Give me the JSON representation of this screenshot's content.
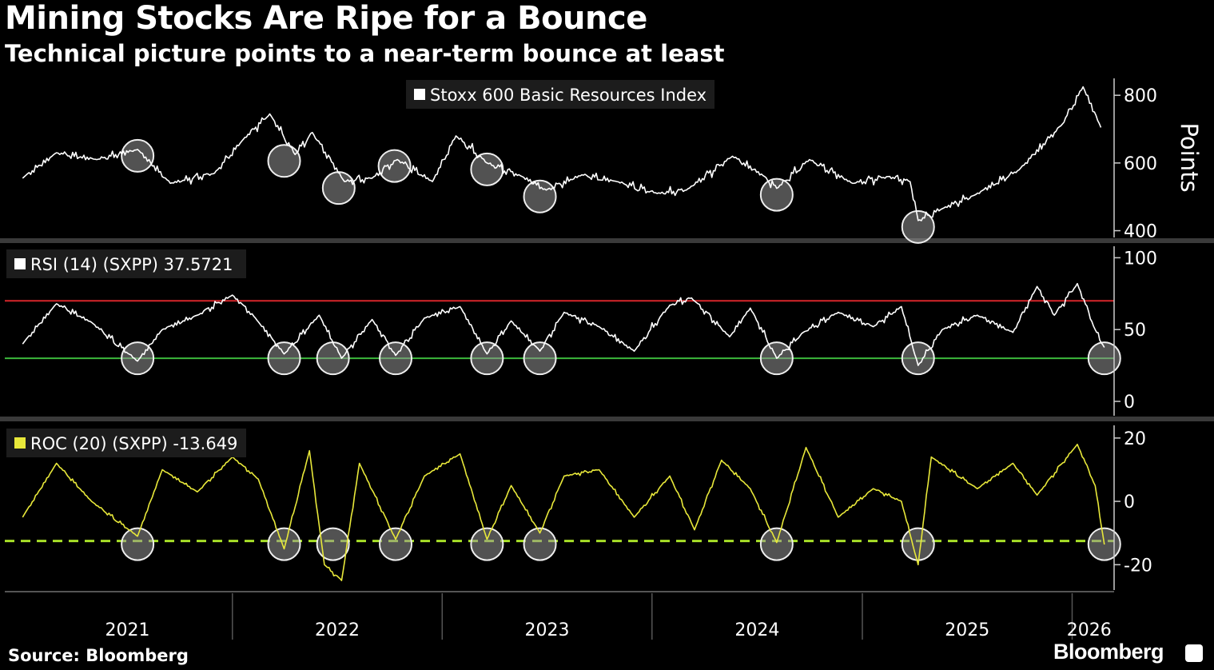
{
  "title": "Mining Stocks Are Ripe for a Bounce",
  "subtitle": "Technical picture points to a near-term bounce at least",
  "source": "Source: Bloomberg",
  "brand": "Bloomberg",
  "colors": {
    "background": "#000000",
    "price": "#ffffff",
    "rsi": "#ffffff",
    "roc": "#e8e83a",
    "overbought": "#d6262a",
    "oversold": "#3cb83c",
    "roc_threshold": "#a8e028",
    "circle": "#9a9a9a"
  },
  "chart_data": [
    {
      "type": "line",
      "legend": "Stoxx 600 Basic Resources Index",
      "ylabel": "Points",
      "yticks": [
        "400",
        "600",
        "800"
      ],
      "ylim": [
        380,
        850
      ],
      "x": [
        "2021-01-01",
        "2021-03-01",
        "2021-05-10",
        "2021-07-20",
        "2021-09-15",
        "2021-12-01",
        "2022-01-20",
        "2022-03-07",
        "2022-04-20",
        "2022-05-20",
        "2022-07-15",
        "2022-09-01",
        "2022-10-15",
        "2022-12-15",
        "2023-01-25",
        "2023-03-20",
        "2023-05-20",
        "2023-07-01",
        "2023-09-01",
        "2023-11-01",
        "2024-01-10",
        "2024-03-01",
        "2024-05-20",
        "2024-07-15",
        "2024-08-05",
        "2024-10-01",
        "2024-12-15",
        "2025-02-15",
        "2025-03-25",
        "2025-04-08",
        "2025-05-20",
        "2025-07-15",
        "2025-10-01",
        "2025-12-15",
        "2026-01-20",
        "2026-02-20"
      ],
      "values": [
        555,
        630,
        610,
        640,
        540,
        570,
        670,
        745,
        625,
        690,
        545,
        555,
        610,
        545,
        680,
        600,
        560,
        520,
        565,
        545,
        510,
        520,
        620,
        560,
        525,
        610,
        540,
        560,
        545,
        430,
        465,
        505,
        580,
        715,
        825,
        705
      ],
      "markers": [
        "2021-07-20",
        "2022-04-01",
        "2022-07-05",
        "2022-10-10",
        "2023-03-20",
        "2023-06-20",
        "2024-08-05",
        "2025-04-08"
      ]
    },
    {
      "type": "line",
      "legend": "RSI (14) (SXPP) 37.5721",
      "yticks": [
        "0",
        "50",
        "100"
      ],
      "ylim": [
        -10,
        108
      ],
      "reference_lines": [
        70,
        30
      ],
      "x": [
        "2021-01-01",
        "2021-03-01",
        "2021-05-01",
        "2021-07-20",
        "2021-09-01",
        "2021-11-01",
        "2022-01-01",
        "2022-02-10",
        "2022-04-01",
        "2022-06-01",
        "2022-07-10",
        "2022-09-01",
        "2022-10-12",
        "2022-12-01",
        "2023-02-01",
        "2023-03-20",
        "2023-05-01",
        "2023-06-20",
        "2023-08-01",
        "2023-10-01",
        "2023-12-01",
        "2024-02-01",
        "2024-03-10",
        "2024-05-15",
        "2024-06-20",
        "2024-08-05",
        "2024-09-20",
        "2024-11-20",
        "2025-01-20",
        "2025-03-10",
        "2025-04-08",
        "2025-05-20",
        "2025-07-20",
        "2025-09-20",
        "2025-11-01",
        "2025-12-01",
        "2026-01-10",
        "2026-02-10",
        "2026-02-26"
      ],
      "values": [
        40,
        68,
        55,
        28,
        50,
        60,
        74,
        58,
        33,
        60,
        30,
        57,
        32,
        58,
        66,
        33,
        56,
        35,
        62,
        52,
        35,
        67,
        72,
        45,
        65,
        30,
        48,
        62,
        52,
        66,
        25,
        50,
        60,
        48,
        80,
        60,
        82,
        50,
        37.6
      ],
      "markers": [
        "2021-07-20",
        "2022-04-01",
        "2022-06-25",
        "2022-10-12",
        "2023-03-20",
        "2023-06-20",
        "2024-08-05",
        "2025-04-08",
        "2026-02-26"
      ]
    },
    {
      "type": "line",
      "legend": "ROC (20) (SXPP) -13.649",
      "yticks": [
        "-20",
        "0",
        "20"
      ],
      "ylim": [
        -28,
        24
      ],
      "reference_lines": [
        -12.5
      ],
      "x": [
        "2021-01-01",
        "2021-03-01",
        "2021-05-01",
        "2021-07-20",
        "2021-09-01",
        "2021-11-01",
        "2022-01-01",
        "2022-02-15",
        "2022-04-01",
        "2022-05-15",
        "2022-06-10",
        "2022-07-10",
        "2022-08-10",
        "2022-10-12",
        "2022-12-01",
        "2023-02-01",
        "2023-03-20",
        "2023-05-01",
        "2023-06-20",
        "2023-08-01",
        "2023-10-01",
        "2023-12-01",
        "2024-02-01",
        "2024-03-15",
        "2024-05-01",
        "2024-06-20",
        "2024-08-05",
        "2024-09-25",
        "2024-11-20",
        "2025-01-20",
        "2025-03-10",
        "2025-04-08",
        "2025-05-01",
        "2025-07-20",
        "2025-09-20",
        "2025-11-01",
        "2026-01-10",
        "2026-02-10",
        "2026-02-26"
      ],
      "values": [
        -5,
        12,
        0,
        -11,
        10,
        3,
        14,
        7,
        -15,
        16,
        -20,
        -25,
        12,
        -12,
        8,
        15,
        -12,
        5,
        -10,
        8,
        10,
        -5,
        8,
        -9,
        13,
        4,
        -13,
        17,
        -5,
        4,
        0,
        -20,
        14,
        4,
        12,
        2,
        18,
        5,
        -13.6
      ],
      "markers": [
        "2021-07-20",
        "2022-04-01",
        "2022-06-25",
        "2022-10-12",
        "2023-03-20",
        "2023-06-20",
        "2024-08-05",
        "2025-04-08",
        "2026-02-26"
      ]
    }
  ],
  "xaxis": {
    "years": [
      "2021",
      "2022",
      "2023",
      "2024",
      "2025",
      "2026"
    ]
  }
}
